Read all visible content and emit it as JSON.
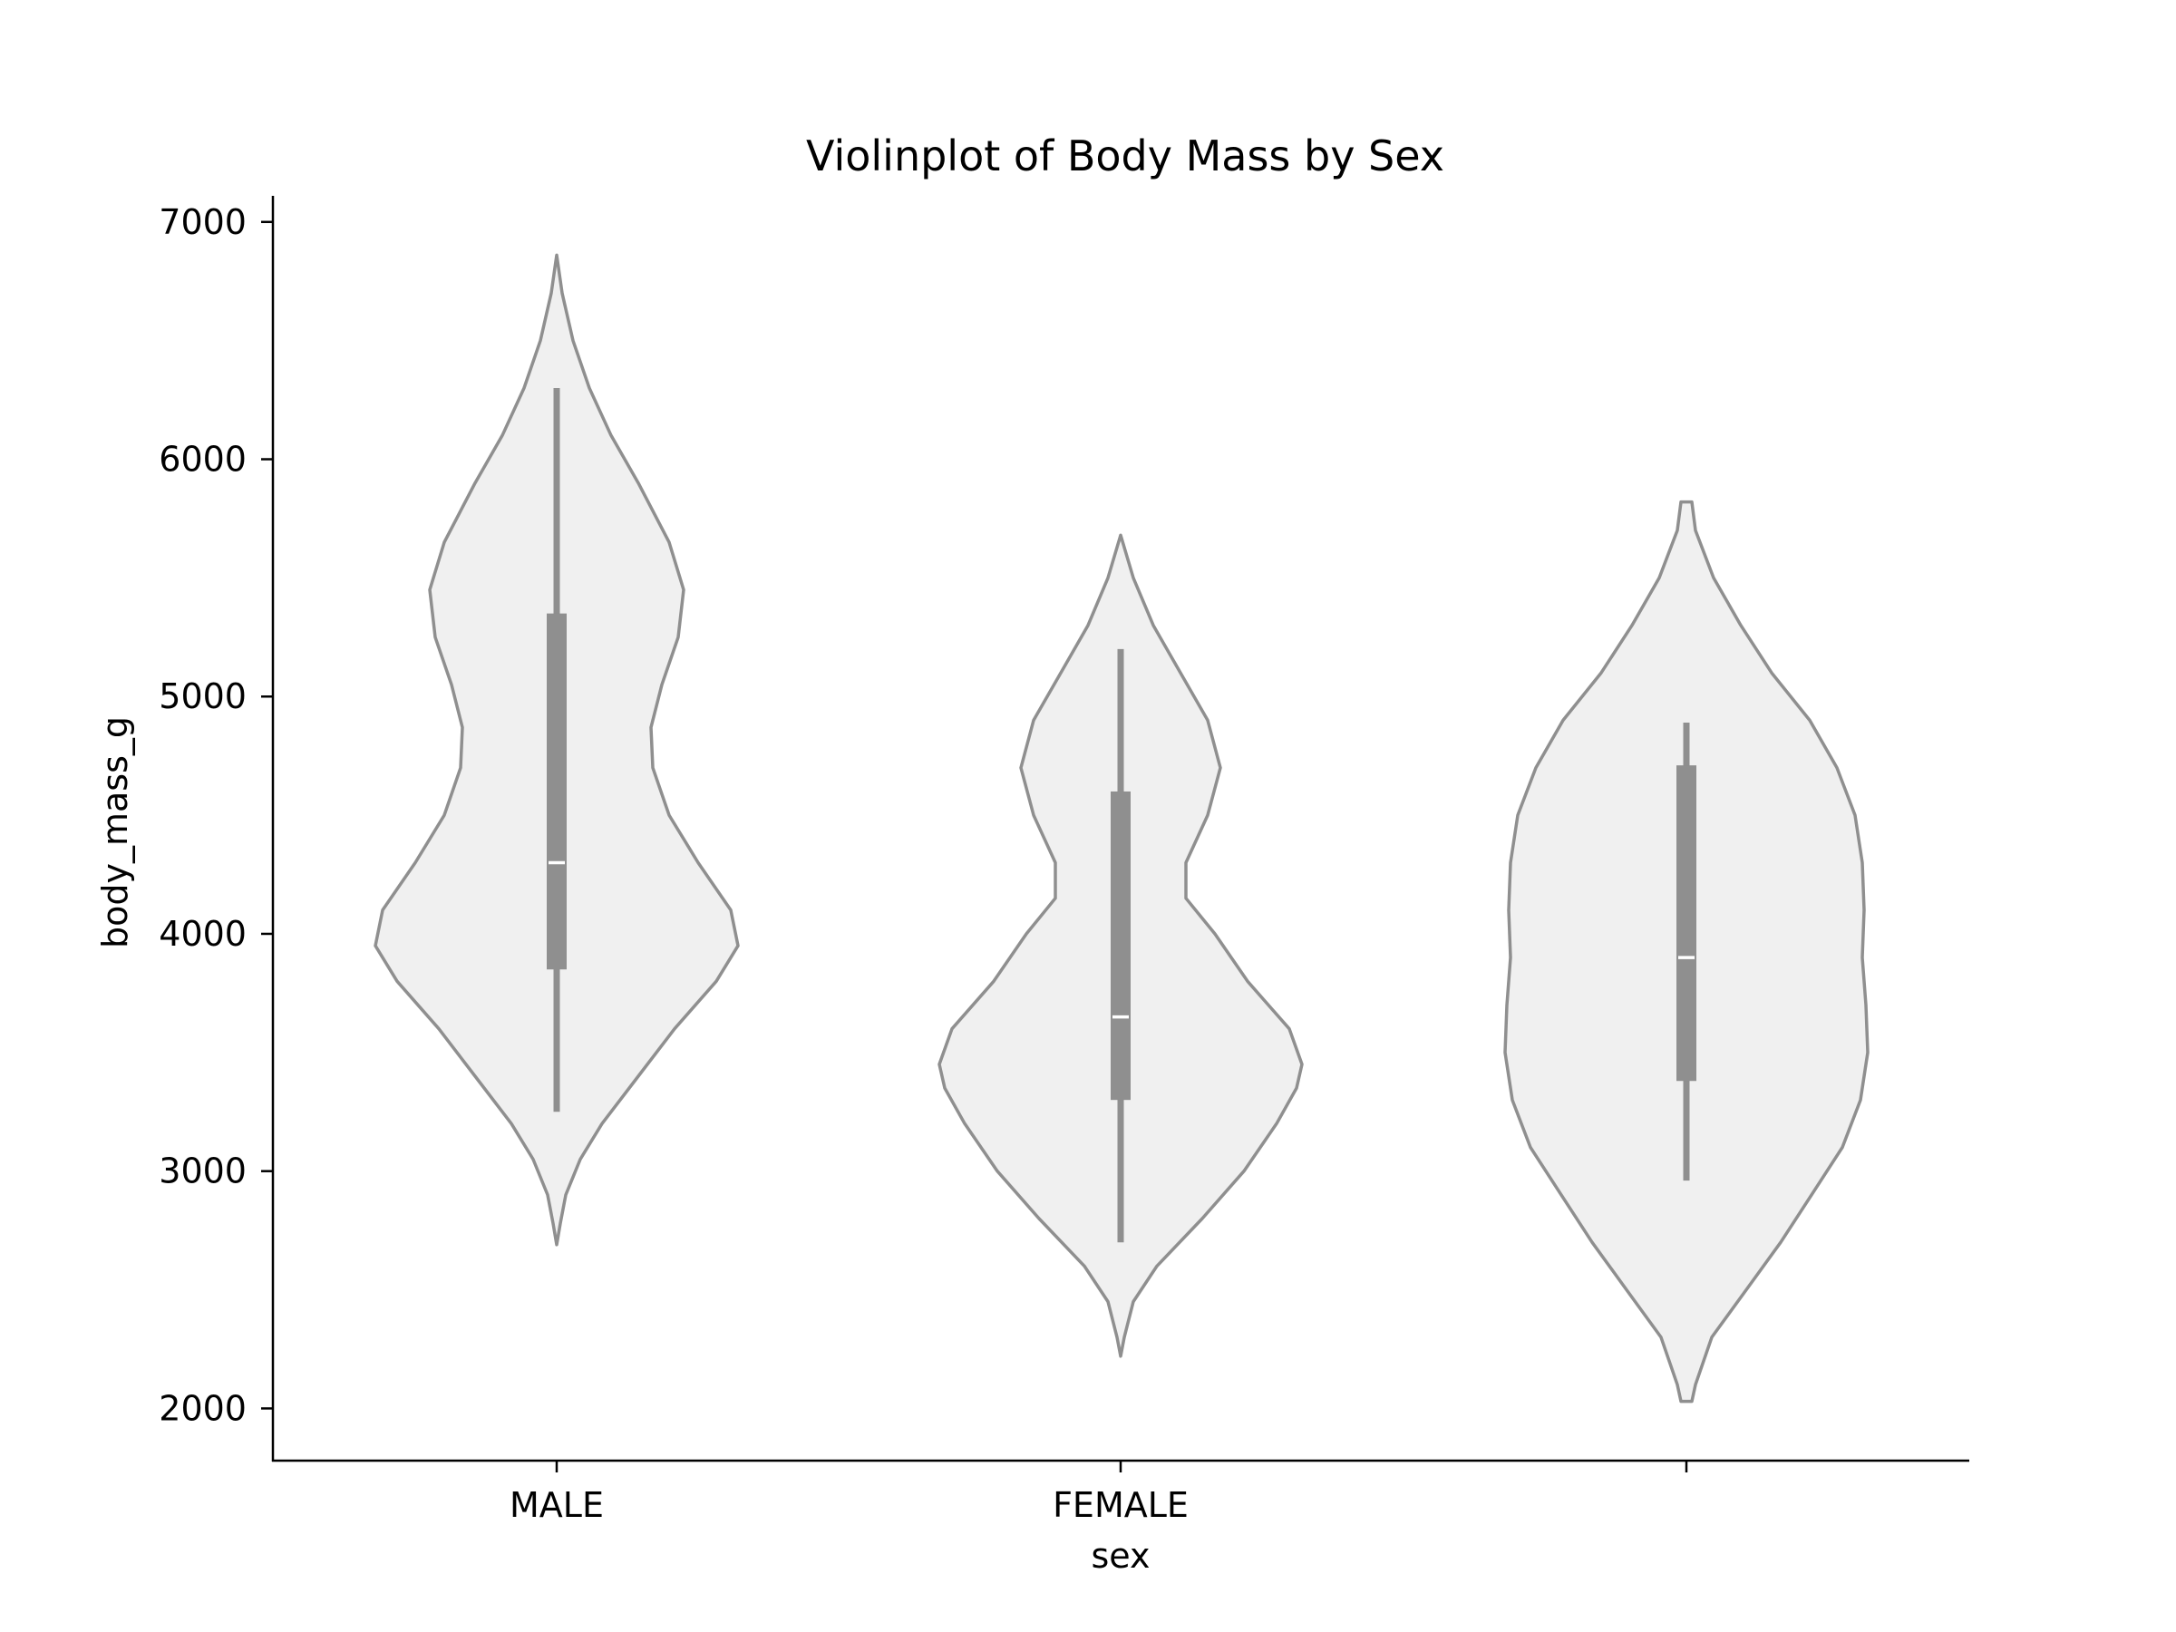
{
  "chart_data": {
    "type": "violin",
    "title": "Violinplot of Body Mass by Sex",
    "xlabel": "sex",
    "ylabel": "body_mass_g",
    "categories": [
      "MALE",
      "FEMALE",
      ""
    ],
    "ylim": [
      1780,
      7110
    ],
    "yticks": [
      2000,
      3000,
      4000,
      5000,
      6000,
      7000
    ],
    "grid": false,
    "colors": {
      "fill": "#f0f0f0",
      "stroke": "#8f8f8f",
      "box": "#8f8f8f",
      "median": "#ffffff",
      "axis": "#000000"
    },
    "series": [
      {
        "category": "MALE",
        "box": {
          "whisker_low": 3250,
          "q1": 3850,
          "median": 4300,
          "q3": 5350,
          "whisker_high": 6300
        },
        "density_range": [
          2690,
          6860
        ],
        "density": [
          [
            2690,
            0.0
          ],
          [
            2780,
            0.02
          ],
          [
            2900,
            0.05
          ],
          [
            3050,
            0.13
          ],
          [
            3200,
            0.25
          ],
          [
            3400,
            0.45
          ],
          [
            3600,
            0.65
          ],
          [
            3800,
            0.88
          ],
          [
            3950,
            1.0
          ],
          [
            4100,
            0.96
          ],
          [
            4300,
            0.78
          ],
          [
            4500,
            0.62
          ],
          [
            4700,
            0.53
          ],
          [
            4870,
            0.52
          ],
          [
            5050,
            0.58
          ],
          [
            5250,
            0.67
          ],
          [
            5450,
            0.7
          ],
          [
            5650,
            0.62
          ],
          [
            5900,
            0.45
          ],
          [
            6100,
            0.3
          ],
          [
            6300,
            0.18
          ],
          [
            6500,
            0.09
          ],
          [
            6700,
            0.03
          ],
          [
            6860,
            0.0
          ]
        ]
      },
      {
        "category": "FEMALE",
        "box": {
          "whisker_low": 2700,
          "q1": 3300,
          "median": 3650,
          "q3": 4600,
          "whisker_high": 5200
        },
        "density_range": [
          2220,
          5680
        ],
        "density": [
          [
            2220,
            0.0
          ],
          [
            2300,
            0.02
          ],
          [
            2450,
            0.07
          ],
          [
            2600,
            0.2
          ],
          [
            2800,
            0.45
          ],
          [
            3000,
            0.68
          ],
          [
            3200,
            0.86
          ],
          [
            3350,
            0.97
          ],
          [
            3450,
            1.0
          ],
          [
            3600,
            0.93
          ],
          [
            3800,
            0.7
          ],
          [
            4000,
            0.52
          ],
          [
            4150,
            0.36
          ],
          [
            4300,
            0.36
          ],
          [
            4500,
            0.48
          ],
          [
            4700,
            0.55
          ],
          [
            4900,
            0.48
          ],
          [
            5100,
            0.33
          ],
          [
            5300,
            0.18
          ],
          [
            5500,
            0.07
          ],
          [
            5680,
            0.0
          ]
        ]
      },
      {
        "category": "",
        "box": {
          "whisker_low": 2960,
          "q1": 3380,
          "median": 3900,
          "q3": 4710,
          "whisker_high": 4890
        },
        "density_range": [
          2030,
          5820
        ],
        "density": [
          [
            2030,
            0.03
          ],
          [
            2100,
            0.05
          ],
          [
            2300,
            0.14
          ],
          [
            2500,
            0.33
          ],
          [
            2700,
            0.52
          ],
          [
            2900,
            0.69
          ],
          [
            3100,
            0.86
          ],
          [
            3300,
            0.96
          ],
          [
            3500,
            1.0
          ],
          [
            3700,
            0.99
          ],
          [
            3900,
            0.97
          ],
          [
            4100,
            0.98
          ],
          [
            4300,
            0.97
          ],
          [
            4500,
            0.93
          ],
          [
            4700,
            0.83
          ],
          [
            4900,
            0.68
          ],
          [
            5100,
            0.47
          ],
          [
            5300,
            0.3
          ],
          [
            5500,
            0.15
          ],
          [
            5700,
            0.05
          ],
          [
            5820,
            0.03
          ]
        ]
      }
    ]
  }
}
